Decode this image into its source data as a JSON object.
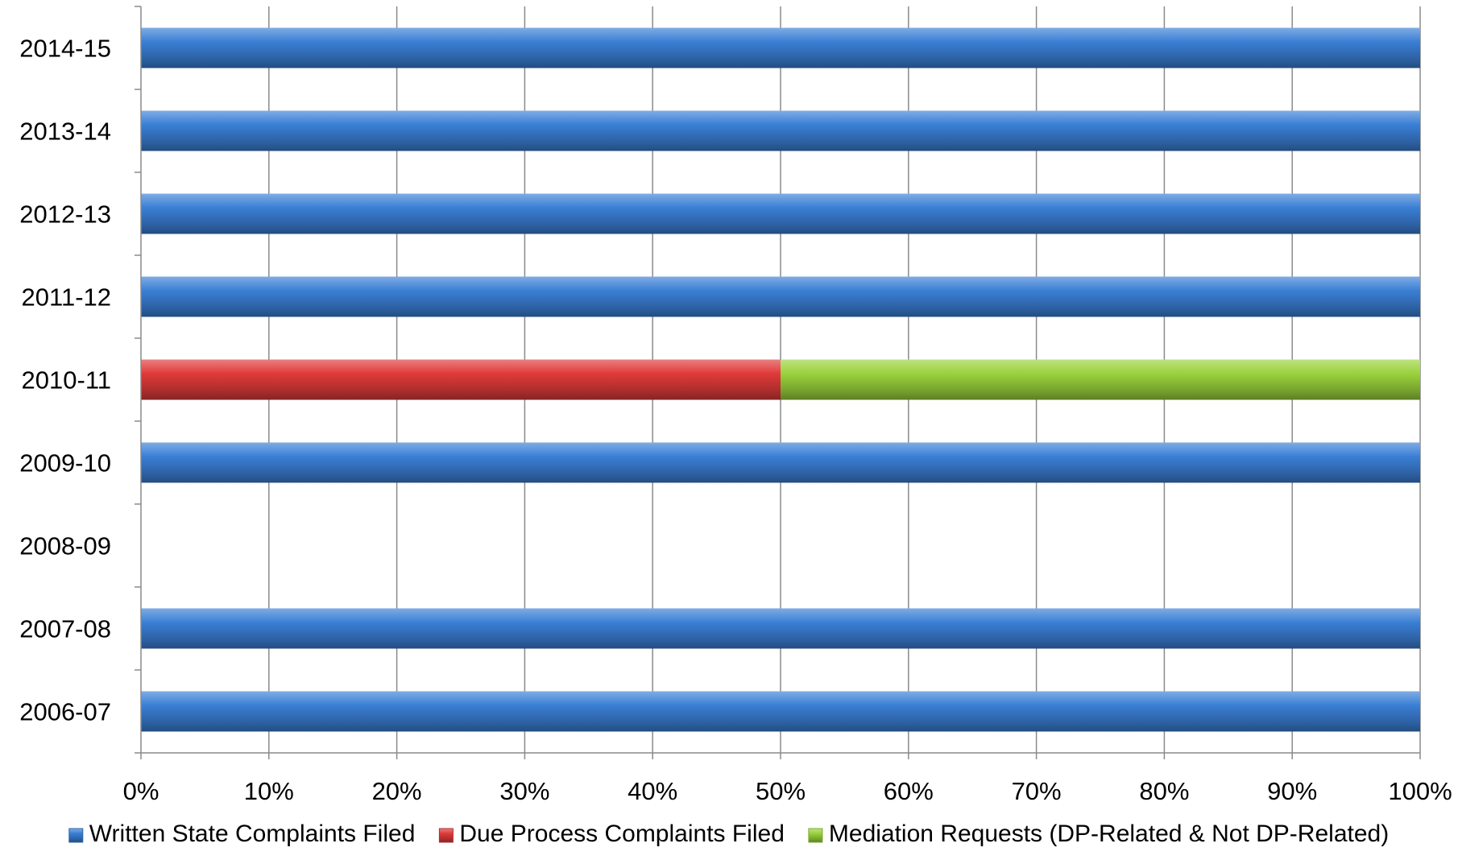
{
  "chart_data": {
    "type": "bar",
    "orientation": "horizontal",
    "stacking": "percent",
    "categories": [
      "2014-15",
      "2013-14",
      "2012-13",
      "2011-12",
      "2010-11",
      "2009-10",
      "2008-09",
      "2007-08",
      "2006-07"
    ],
    "series": [
      {
        "name": "Written State Complaints Filed",
        "color": "#3a7fd5",
        "values": [
          100,
          100,
          100,
          100,
          0,
          100,
          0,
          100,
          100
        ]
      },
      {
        "name": "Due Process Complaints Filed",
        "color": "#e03a3a",
        "values": [
          0,
          0,
          0,
          0,
          50,
          0,
          0,
          0,
          0
        ]
      },
      {
        "name": "Mediation Requests (DP-Related & Not DP-Related)",
        "color": "#9ad23c",
        "values": [
          0,
          0,
          0,
          0,
          50,
          0,
          0,
          0,
          0
        ]
      }
    ],
    "xlim": [
      0,
      100
    ],
    "xticks": [
      "0%",
      "10%",
      "20%",
      "30%",
      "40%",
      "50%",
      "60%",
      "70%",
      "80%",
      "90%",
      "100%"
    ],
    "title": "",
    "xlabel": "",
    "ylabel": "",
    "grid": "vertical",
    "legend_position": "bottom"
  }
}
